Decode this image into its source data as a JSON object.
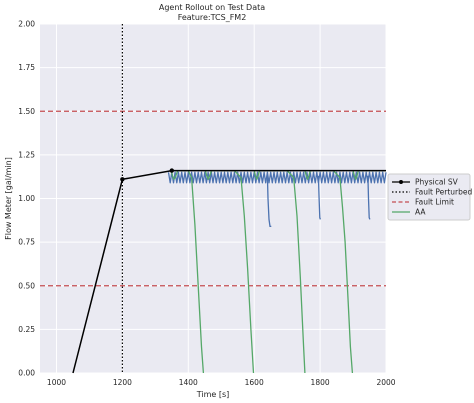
{
  "chart_data": {
    "type": "line",
    "title": "Agent Rollout on Test Data",
    "subtitle": "Feature:TCS_FM2",
    "xlabel": "Time [s]",
    "ylabel": "Flow Meter [gal/min]",
    "xlim": [
      950,
      2000
    ],
    "ylim": [
      0.0,
      2.0
    ],
    "x_ticks": [
      1000,
      1200,
      1400,
      1600,
      1800,
      2000
    ],
    "y_ticks": [
      0.0,
      0.25,
      0.5,
      0.75,
      1.0,
      1.25,
      1.5,
      1.75,
      2.0
    ],
    "x_tick_labels": [
      "1000",
      "1200",
      "1400",
      "1600",
      "1800",
      "2000"
    ],
    "y_tick_labels": [
      "0.00",
      "0.25",
      "0.50",
      "0.75",
      "1.00",
      "1.25",
      "1.50",
      "1.75",
      "2.00"
    ],
    "grid": true,
    "legend_position": "right",
    "colors": {
      "background": "#eaeaf2",
      "grid": "#ffffff",
      "physical_sv": "#000000",
      "fault_perturbed": "#000000",
      "fault_limit": "#c44e52",
      "aa": "#55a868",
      "blue_series": "#4c72b0"
    },
    "series": [
      {
        "name": "Physical SV",
        "style": "solid-marker",
        "x": [
          1050,
          1200,
          1350,
          2000
        ],
        "y": [
          0.0,
          1.11,
          1.16,
          1.16
        ]
      },
      {
        "name": "Fault Perturbed",
        "style": "vertical-dotted",
        "x_value": 1200
      },
      {
        "name": "Fault Limit",
        "style": "horizontal-dashed",
        "y_values": [
          0.5,
          1.5
        ]
      },
      {
        "name": "AA",
        "style": "solid",
        "segments": [
          {
            "x": [
              1348,
              1352,
              1356,
              1360,
              1364,
              1368,
              1380,
              1400,
              1410,
              1420,
              1430,
              1440,
              1446
            ],
            "y": [
              1.16,
              1.13,
              1.11,
              1.12,
              1.14,
              1.16,
              1.16,
              1.16,
              1.12,
              0.85,
              0.5,
              0.15,
              0.0
            ]
          },
          {
            "x": [
              1452,
              1456,
              1460,
              1465,
              1470,
              1500,
              1540,
              1560,
              1570,
              1580,
              1590,
              1598
            ],
            "y": [
              1.16,
              1.13,
              1.11,
              1.13,
              1.16,
              1.16,
              1.16,
              1.12,
              0.9,
              0.6,
              0.25,
              0.0
            ]
          },
          {
            "x": [
              1600,
              1604,
              1608,
              1612,
              1616,
              1650,
              1700,
              1720,
              1730,
              1740,
              1750,
              1754
            ],
            "y": [
              1.16,
              1.13,
              1.11,
              1.13,
              1.16,
              1.16,
              1.16,
              1.12,
              0.9,
              0.55,
              0.15,
              0.0
            ]
          },
          {
            "x": [
              1754,
              1758,
              1762,
              1766,
              1770,
              1800,
              1840,
              1860,
              1868,
              1876,
              1884,
              1892,
              1898
            ],
            "y": [
              1.16,
              1.13,
              1.11,
              1.13,
              1.16,
              1.16,
              1.16,
              1.12,
              0.95,
              0.75,
              0.45,
              0.15,
              0.0
            ]
          },
          {
            "x": [
              1900,
              1904,
              1908,
              1912,
              1916,
              1950,
              2000
            ],
            "y": [
              1.16,
              1.13,
              1.11,
              1.13,
              1.16,
              1.16,
              1.16
            ]
          }
        ]
      },
      {
        "name": "",
        "style": "solid",
        "oscillating": {
          "x_start": 1340,
          "x_end": 2000,
          "period": 10,
          "y_high": 1.15,
          "y_low": 1.09,
          "dips": [
            {
              "x": [
                1640,
                1642,
                1645,
                1648,
                1652
              ],
              "y": [
                1.13,
                1.0,
                0.88,
                0.84,
                0.84
              ]
            },
            {
              "x": [
                1795,
                1797,
                1799,
                1801
              ],
              "y": [
                1.13,
                1.0,
                0.89,
                0.88
              ]
            },
            {
              "x": [
                1945,
                1947,
                1949,
                1951
              ],
              "y": [
                1.13,
                1.0,
                0.89,
                0.88
              ]
            }
          ]
        }
      }
    ]
  }
}
